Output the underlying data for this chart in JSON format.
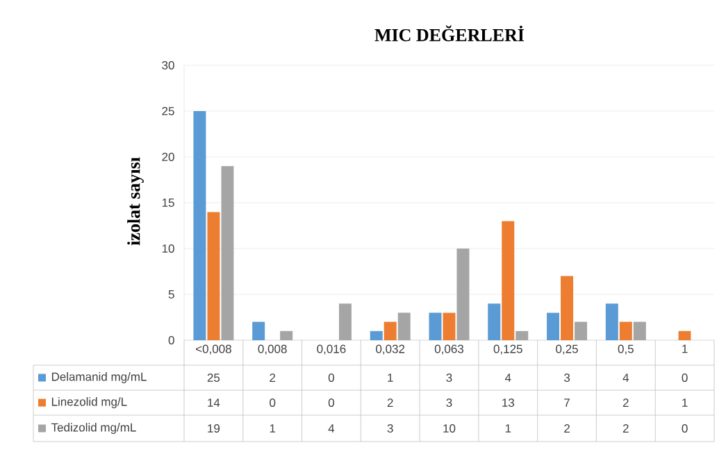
{
  "chart_data": {
    "type": "bar",
    "title": "MIC DEĞERLERİ",
    "ylabel": "izolat sayısı",
    "categories": [
      "<0,008",
      "0,008",
      "0,016",
      "0,032",
      "0,063",
      "0,125",
      "0,25",
      "0,5",
      "1"
    ],
    "series": [
      {
        "name": "Delamanid mg/mL",
        "color": "#5b9bd5",
        "values": [
          25,
          2,
          0,
          1,
          3,
          4,
          3,
          4,
          0
        ]
      },
      {
        "name": "Linezolid mg/L",
        "color": "#ed7d31",
        "values": [
          14,
          0,
          0,
          2,
          3,
          13,
          7,
          2,
          1
        ]
      },
      {
        "name": "Tedizolid mg/mL",
        "color": "#a5a5a5",
        "values": [
          19,
          1,
          4,
          3,
          10,
          1,
          2,
          2,
          0
        ]
      }
    ],
    "ylim": [
      0,
      30
    ],
    "yticks": [
      0,
      5,
      10,
      15,
      20,
      25,
      30
    ],
    "grid": "y",
    "legend": "bottom",
    "data_labels": true
  }
}
